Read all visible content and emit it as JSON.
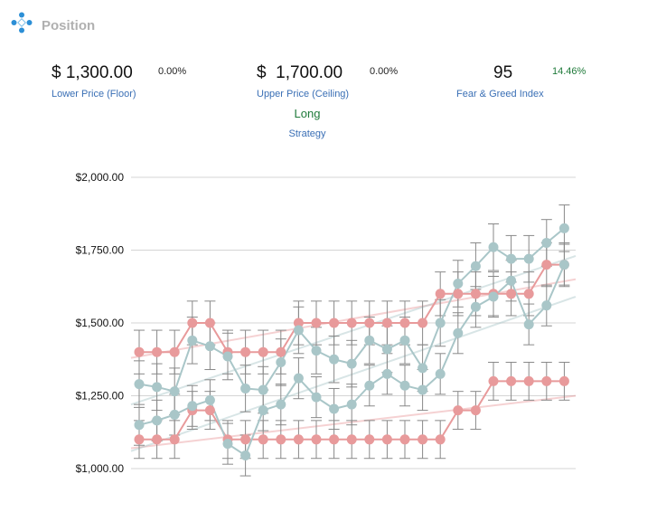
{
  "header": {
    "title": "Position",
    "logo_icon": "diamond-dots-icon"
  },
  "stats": {
    "lower": {
      "value": "$ 1,300.00",
      "pct": "0.00%",
      "label": "Lower Price (Floor)"
    },
    "upper": {
      "value": "$  1,700.00",
      "pct": "0.00%",
      "label": "Upper Price (Ceiling)"
    },
    "fear": {
      "value": "95",
      "pct": "14.46%",
      "label": "Fear & Greed Index"
    },
    "strategy": {
      "value": "Long",
      "label": "Strategy"
    }
  },
  "colors": {
    "red": "#e89a9b",
    "teal": "#a9c6c8",
    "green_text": "#1f7a3a",
    "label_blue": "#3a6fb5"
  },
  "chart_data": {
    "type": "line",
    "ylim": [
      1000,
      2000
    ],
    "yticks": [
      1000,
      1250,
      1500,
      1750,
      2000
    ],
    "ytick_labels": [
      "$1,000.00",
      "$1,250.00",
      "$1,500.00",
      "$1,750.00",
      "$2,000.00"
    ],
    "x": [
      0,
      1,
      2,
      3,
      4,
      5,
      6,
      7,
      8,
      9,
      10,
      11,
      12,
      13,
      14,
      15,
      16,
      17,
      18,
      19,
      20,
      21,
      22,
      23,
      24
    ],
    "series": [
      {
        "color": "#e89a9b",
        "values": [
          1400,
          1400,
          1400,
          1500,
          1500,
          1400,
          1400,
          1400,
          1400,
          1500,
          1500,
          1500,
          1500,
          1500,
          1500,
          1500,
          1500,
          1600,
          1600,
          1600,
          1600,
          1600,
          1600,
          1700,
          1700
        ],
        "error": 75
      },
      {
        "color": "#e89a9b",
        "values": [
          1100,
          1100,
          1100,
          1200,
          1200,
          1100,
          1100,
          1100,
          1100,
          1100,
          1100,
          1100,
          1100,
          1100,
          1100,
          1100,
          1100,
          1100,
          1200,
          1200,
          1300,
          1300,
          1300,
          1300,
          1300
        ],
        "error": 65
      },
      {
        "color": "#a9c6c8",
        "values": [
          1290,
          1280,
          1265,
          1440,
          1420,
          1385,
          1275,
          1270,
          1365,
          1475,
          1405,
          1375,
          1360,
          1440,
          1410,
          1440,
          1345,
          1500,
          1635,
          1695,
          1760,
          1720,
          1720,
          1775,
          1825
        ],
        "error": 80
      },
      {
        "color": "#a9c6c8",
        "values": [
          1150,
          1165,
          1185,
          1215,
          1235,
          1085,
          1045,
          1200,
          1220,
          1310,
          1245,
          1205,
          1220,
          1285,
          1325,
          1285,
          1270,
          1325,
          1465,
          1555,
          1590,
          1645,
          1495,
          1560,
          1700
        ],
        "error": 70
      }
    ],
    "trendlines": [
      {
        "color": "#e89a9b",
        "from": 1380,
        "to": 1650
      },
      {
        "color": "#e89a9b",
        "from": 1070,
        "to": 1250
      },
      {
        "color": "#a9c6c8",
        "from": 1220,
        "to": 1730
      },
      {
        "color": "#a9c6c8",
        "from": 1060,
        "to": 1590
      }
    ]
  }
}
